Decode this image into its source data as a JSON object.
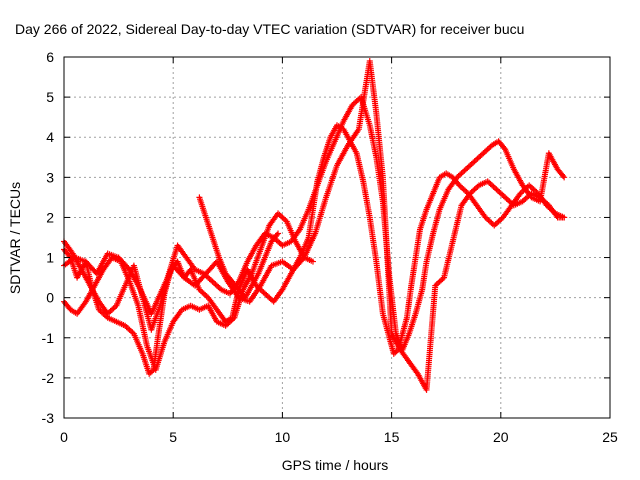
{
  "chart_data": {
    "type": "scatter",
    "title": "Day 266 of 2022, Sidereal Day-to-day VTEC variation (SDTVAR) for receiver bucu",
    "xlabel": "GPS time / hours",
    "ylabel": "SDTVAR / TECUs",
    "xlim": [
      0,
      25
    ],
    "ylim": [
      -3,
      6
    ],
    "x_ticks": [
      "0",
      "5",
      "10",
      "15",
      "20",
      "25"
    ],
    "y_ticks": [
      "-3",
      "-2",
      "-1",
      "0",
      "1",
      "2",
      "3",
      "4",
      "5",
      "6"
    ],
    "grid": true,
    "marker": "+",
    "color": "#ff0000",
    "series": [
      {
        "x": [
          0.0,
          0.3,
          0.6,
          1.0,
          1.3,
          1.6,
          2.0,
          2.4,
          2.8,
          3.2,
          3.6,
          3.9,
          4.1,
          4.3,
          4.6,
          4.9,
          5.2,
          5.5,
          5.8,
          6.2,
          6.6,
          7.0,
          7.4,
          7.7,
          8.0,
          8.4,
          8.8,
          9.2,
          9.6,
          10.0,
          10.4,
          10.8,
          11.2,
          11.6,
          11.9,
          12.2,
          12.5,
          12.8,
          13.1,
          13.4,
          13.7,
          14.0,
          14.3,
          14.6,
          14.9,
          15.1,
          15.3,
          15.5,
          15.7,
          15.9,
          16.1,
          16.3,
          16.6,
          16.9,
          17.2,
          17.5,
          17.8,
          18.1,
          18.5,
          18.9,
          19.3,
          19.7,
          20.1,
          20.5,
          20.9,
          21.3,
          21.7,
          22.1,
          22.5,
          22.9
        ],
        "y": [
          1.2,
          1.0,
          0.5,
          0.9,
          0.2,
          -0.3,
          -0.5,
          -0.6,
          -0.7,
          -0.9,
          -1.4,
          -1.9,
          -1.8,
          -1.0,
          0.1,
          0.7,
          0.9,
          0.5,
          0.7,
          0.2,
          0.0,
          -0.3,
          -0.6,
          -0.5,
          0.2,
          0.7,
          0.3,
          0.1,
          -0.1,
          0.2,
          0.6,
          1.0,
          1.5,
          2.9,
          3.5,
          4.0,
          4.3,
          4.2,
          3.9,
          3.6,
          2.9,
          2.0,
          0.9,
          -0.4,
          -1.0,
          -1.4,
          -1.3,
          -0.9,
          -0.5,
          0.3,
          1.0,
          1.7,
          2.2,
          2.6,
          3.0,
          3.1,
          3.0,
          2.8,
          2.6,
          2.3,
          2.0,
          1.8,
          2.0,
          2.3,
          2.6,
          2.8,
          2.6,
          2.3,
          2.1,
          2.0
        ]
      },
      {
        "x": [
          0.0,
          0.4,
          0.8,
          1.2,
          1.6,
          2.0,
          2.4,
          2.8,
          3.2,
          3.6,
          4.0,
          4.4,
          4.8,
          5.2,
          5.6,
          6.0,
          6.4,
          6.8,
          7.2,
          7.6,
          8.0,
          8.4,
          8.8,
          9.2,
          9.6,
          10.0,
          10.4,
          10.8,
          11.2,
          11.6,
          12.0,
          12.4,
          12.8,
          13.2,
          13.6,
          14.0,
          14.3,
          14.6,
          14.9,
          15.2,
          15.5,
          15.8,
          16.1,
          16.4,
          16.6,
          16.9,
          17.2,
          17.6,
          18.0,
          18.4,
          18.8,
          19.2,
          19.6,
          19.9,
          20.2,
          20.6,
          21.0,
          21.4,
          21.8,
          22.2,
          22.6,
          22.9
        ],
        "y": [
          1.4,
          1.1,
          0.7,
          0.3,
          -0.1,
          -0.4,
          -0.2,
          0.3,
          0.8,
          0.0,
          -0.8,
          -0.2,
          0.6,
          1.3,
          1.0,
          0.7,
          0.6,
          0.4,
          0.2,
          0.1,
          0.4,
          0.9,
          1.3,
          1.6,
          1.5,
          1.3,
          1.4,
          1.7,
          2.2,
          2.8,
          3.4,
          3.9,
          4.4,
          4.8,
          5.0,
          4.3,
          3.5,
          2.4,
          0.5,
          -0.9,
          -1.3,
          -0.9,
          -0.4,
          0.2,
          0.9,
          1.6,
          2.2,
          2.7,
          3.0,
          3.2,
          3.4,
          3.6,
          3.8,
          3.9,
          3.7,
          3.2,
          2.8,
          2.5,
          2.4,
          3.6,
          3.2,
          3.0
        ]
      },
      {
        "x": [
          0.0,
          0.5,
          1.0,
          1.5,
          2.0,
          2.5,
          3.0,
          3.5,
          4.0,
          4.5,
          5.0,
          5.5,
          6.0,
          6.5,
          7.0,
          7.5,
          8.0,
          8.5,
          9.0,
          9.5,
          10.0,
          10.5,
          11.0,
          11.5,
          12.0,
          12.5,
          13.0,
          13.5,
          14.0,
          14.3,
          14.6,
          15.0,
          15.4,
          15.8,
          16.2,
          16.6,
          17.0,
          17.4,
          17.8,
          18.2,
          18.6,
          19.0,
          19.4,
          19.8,
          20.2,
          20.6,
          21.0,
          21.4,
          21.8,
          22.2,
          22.6,
          22.9
        ],
        "y": [
          0.8,
          1.0,
          0.9,
          0.6,
          1.1,
          1.0,
          0.7,
          0.2,
          -0.4,
          0.2,
          0.8,
          0.5,
          0.3,
          0.6,
          0.9,
          0.4,
          0.0,
          -0.1,
          0.3,
          0.8,
          0.9,
          0.7,
          1.0,
          1.6,
          2.5,
          3.3,
          3.8,
          4.2,
          5.9,
          4.6,
          3.0,
          -0.9,
          -1.3,
          -1.6,
          -1.9,
          -2.3,
          0.3,
          0.5,
          1.4,
          2.3,
          2.6,
          2.8,
          2.9,
          2.7,
          2.5,
          2.3,
          2.4,
          2.6,
          2.5,
          2.3,
          2.0,
          2.0
        ]
      },
      {
        "x": [
          0.0,
          0.3,
          0.6,
          1.0,
          1.4,
          1.8,
          2.2,
          2.6,
          3.0,
          3.4,
          3.8,
          4.2,
          4.6,
          5.0,
          5.4,
          5.8,
          6.2,
          6.6,
          7.0,
          7.4,
          7.8,
          8.2,
          8.6,
          9.0,
          9.4,
          9.8,
          10.2,
          10.6,
          11.0,
          11.4
        ],
        "y": [
          -0.1,
          -0.3,
          -0.4,
          -0.1,
          0.3,
          0.7,
          1.0,
          0.9,
          0.4,
          -0.2,
          -1.2,
          -1.8,
          -1.1,
          -0.6,
          -0.3,
          -0.2,
          -0.3,
          -0.2,
          -0.6,
          -0.7,
          -0.5,
          0.2,
          0.6,
          1.2,
          1.8,
          2.1,
          1.9,
          1.4,
          1.0,
          0.9
        ]
      },
      {
        "x": [
          6.2,
          6.5,
          6.8,
          7.1,
          7.4,
          7.7,
          8.0,
          8.3,
          8.6,
          8.9,
          9.2,
          9.5,
          9.8
        ],
        "y": [
          2.5,
          2.0,
          1.5,
          1.0,
          0.6,
          0.4,
          0.2,
          0.0,
          0.3,
          0.6,
          1.0,
          1.4,
          1.6
        ]
      }
    ]
  }
}
